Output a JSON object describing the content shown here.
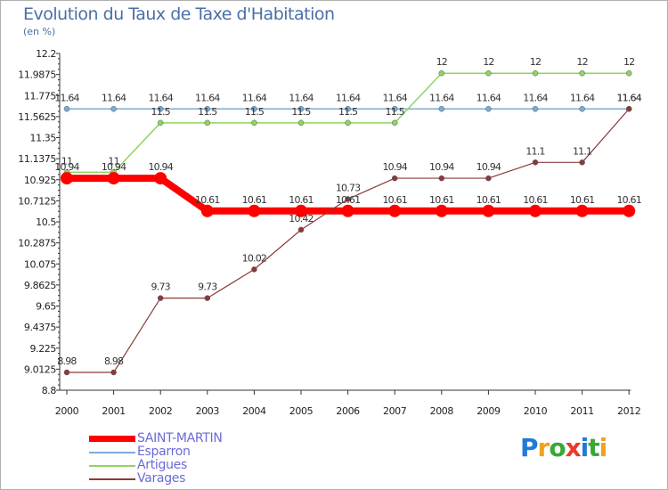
{
  "title": "Evolution du Taux de Taxe d'Habitation",
  "unit": "(en %)",
  "logo": {
    "letters": [
      "P",
      "r",
      "o",
      "x",
      "i",
      "t",
      "i"
    ],
    "colors": [
      "#1f7ad8",
      "#f0a21a",
      "#38a838",
      "#e83a2a",
      "#1f7ad8",
      "#38a838",
      "#f0a21a"
    ]
  },
  "chart_data": {
    "type": "line",
    "title": "Evolution du Taux de Taxe d'Habitation",
    "ylabel": "(en %)",
    "xlabel": "",
    "ylim": [
      8.8,
      12.2
    ],
    "ytick_labels": [
      "12.2",
      "11.9875",
      "11.775",
      "11.5625",
      "11.35",
      "11.1375",
      "10.925",
      "10.7125",
      "10.5",
      "10.2875",
      "10.075",
      "9.8625",
      "9.65",
      "9.4375",
      "9.225",
      "9.0125",
      "8.8"
    ],
    "categories": [
      "2000",
      "2001",
      "2002",
      "2003",
      "2004",
      "2005",
      "2006",
      "2007",
      "2008",
      "2009",
      "2010",
      "2011",
      "2012"
    ],
    "series": [
      {
        "name": "SAINT-MARTIN",
        "color": "#ff0000",
        "values": [
          10.94,
          10.94,
          10.94,
          10.61,
          10.61,
          10.61,
          10.61,
          10.61,
          10.61,
          10.61,
          10.61,
          10.61,
          10.61
        ],
        "labels": [
          "10.94",
          "10.94",
          "10.94",
          "10.61",
          "10.61",
          "10.61",
          "10.61",
          "10.61",
          "10.61",
          "10.61",
          "10.61",
          "10.61",
          "10.61"
        ]
      },
      {
        "name": "Esparron",
        "color": "#7bacd6",
        "values": [
          11.64,
          11.64,
          11.64,
          11.64,
          11.64,
          11.64,
          11.64,
          11.64,
          11.64,
          11.64,
          11.64,
          11.64,
          11.64
        ],
        "labels": [
          "11.64",
          "11.64",
          "11.64",
          "11.64",
          "11.64",
          "11.64",
          "11.64",
          "11.64",
          "11.64",
          "11.64",
          "11.64",
          "11.64",
          "11.64"
        ]
      },
      {
        "name": "Artigues",
        "color": "#8fd460",
        "values": [
          11,
          11,
          11.5,
          11.5,
          11.5,
          11.5,
          11.5,
          11.5,
          12,
          12,
          12,
          12,
          12
        ],
        "labels": [
          "11",
          "11",
          "11.5",
          "11.5",
          "11.5",
          "11.5",
          "11.5",
          "11.5",
          "12",
          "12",
          "12",
          "12",
          "12"
        ]
      },
      {
        "name": "Varages",
        "color": "#8b3a3a",
        "values": [
          8.98,
          8.98,
          9.73,
          9.73,
          10.02,
          10.42,
          10.73,
          10.94,
          10.94,
          10.94,
          11.1,
          11.1,
          11.64
        ],
        "labels": [
          "8.98",
          "8.98",
          "9.73",
          "9.73",
          "10.02",
          "10.42",
          "10.73",
          "10.94",
          "10.94",
          "10.94",
          "11.1",
          "11.1",
          "11.64"
        ]
      }
    ]
  }
}
